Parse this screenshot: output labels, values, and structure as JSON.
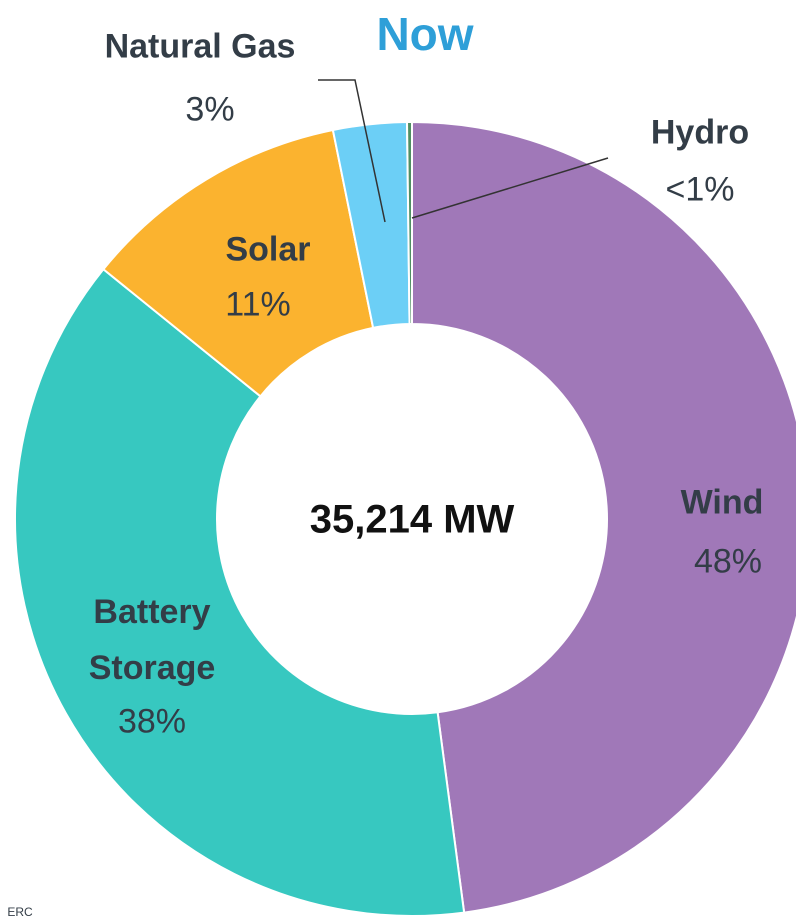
{
  "chart_data": {
    "type": "donut",
    "title": "Now",
    "center_label": "35,214 MW",
    "categories": [
      "Wind",
      "Battery Storage",
      "Solar",
      "Natural Gas",
      "Hydro"
    ],
    "values": [
      48,
      38,
      11,
      3,
      0.2
    ],
    "value_labels": [
      "48%",
      "38%",
      "11%",
      "3%",
      "<1%"
    ],
    "colors": [
      "#a078b8",
      "#37c8c0",
      "#fbb32f",
      "#6ccff6",
      "#4f8f63"
    ],
    "source": "ERC"
  }
}
